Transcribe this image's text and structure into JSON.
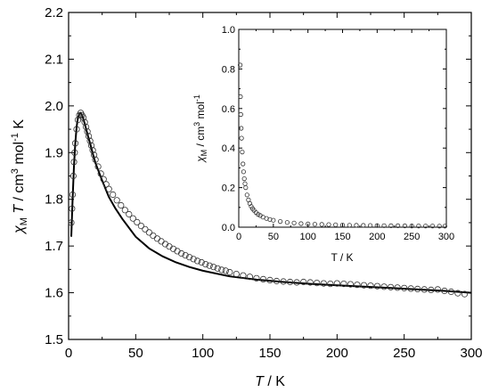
{
  "chart_data": [
    {
      "type": "scatter",
      "title": "",
      "xlabel": "T / K",
      "xlabel_parts": {
        "sym": "T",
        "rest": " / K"
      },
      "ylabel": "χM T / cm3 mol-1 K",
      "ylabel_parts": {
        "chi": "χ",
        "sub": "M",
        "t": " T",
        "a": " / cm",
        "sup1": "3",
        "b": " mol",
        "sup2": "-1",
        "c": " K"
      },
      "xlim": [
        0,
        300
      ],
      "ylim": [
        1.5,
        2.2
      ],
      "x_ticks": [
        0,
        50,
        100,
        150,
        200,
        250,
        300
      ],
      "y_ticks": [
        1.5,
        1.6,
        1.7,
        1.8,
        1.9,
        2.0,
        2.1,
        2.2
      ],
      "x_tick_labels": [
        "0",
        "50",
        "100",
        "150",
        "200",
        "250",
        "300"
      ],
      "y_tick_labels": [
        "1.5",
        "1.6",
        "1.7",
        "1.8",
        "1.9",
        "2.0",
        "2.1",
        "2.2"
      ],
      "grid": false,
      "series": [
        {
          "kind": "points",
          "marker": "open-circle",
          "x": [
            2,
            2.5,
            3,
            3.5,
            4,
            4.5,
            5,
            6,
            7,
            8,
            9,
            10,
            11,
            12,
            13,
            14,
            15,
            16,
            17,
            18,
            19,
            20,
            22,
            24,
            26,
            28,
            30,
            33,
            36,
            39,
            42,
            45,
            48,
            51,
            54,
            57,
            60,
            63,
            66,
            69,
            72,
            75,
            78,
            81,
            84,
            87,
            90,
            93,
            96,
            99,
            102,
            105,
            108,
            111,
            114,
            117,
            120,
            125,
            130,
            135,
            140,
            145,
            150,
            155,
            160,
            165,
            170,
            175,
            180,
            185,
            190,
            195,
            200,
            205,
            210,
            215,
            220,
            225,
            230,
            235,
            240,
            245,
            250,
            255,
            260,
            265,
            270,
            275,
            280,
            285,
            290,
            295
          ],
          "y": [
            1.75,
            1.78,
            1.81,
            1.85,
            1.88,
            1.9,
            1.92,
            1.95,
            1.97,
            1.98,
            1.985,
            1.98,
            1.975,
            1.965,
            1.955,
            1.945,
            1.935,
            1.925,
            1.915,
            1.905,
            1.895,
            1.885,
            1.87,
            1.855,
            1.843,
            1.832,
            1.822,
            1.81,
            1.798,
            1.787,
            1.777,
            1.768,
            1.759,
            1.751,
            1.743,
            1.736,
            1.729,
            1.722,
            1.716,
            1.71,
            1.704,
            1.699,
            1.694,
            1.689,
            1.684,
            1.68,
            1.676,
            1.672,
            1.668,
            1.665,
            1.661,
            1.658,
            1.655,
            1.652,
            1.649,
            1.647,
            1.644,
            1.64,
            1.637,
            1.634,
            1.631,
            1.629,
            1.627,
            1.625,
            1.624,
            1.623,
            1.622,
            1.623,
            1.622,
            1.621,
            1.62,
            1.619,
            1.62,
            1.619,
            1.618,
            1.617,
            1.616,
            1.615,
            1.614,
            1.613,
            1.612,
            1.611,
            1.61,
            1.609,
            1.608,
            1.607,
            1.606,
            1.607,
            1.604,
            1.602,
            1.599,
            1.597
          ]
        },
        {
          "kind": "fit-line",
          "x": [
            2,
            3,
            4,
            5,
            6,
            7,
            8,
            9,
            10,
            11,
            12,
            14,
            16,
            18,
            20,
            25,
            30,
            35,
            40,
            50,
            60,
            70,
            80,
            90,
            100,
            120,
            140,
            160,
            180,
            200,
            220,
            240,
            260,
            280,
            300
          ],
          "y": [
            1.72,
            1.8,
            1.87,
            1.92,
            1.955,
            1.975,
            1.983,
            1.985,
            1.98,
            1.972,
            1.962,
            1.94,
            1.92,
            1.898,
            1.878,
            1.84,
            1.805,
            1.78,
            1.758,
            1.72,
            1.695,
            1.678,
            1.665,
            1.655,
            1.647,
            1.635,
            1.628,
            1.623,
            1.619,
            1.616,
            1.613,
            1.61,
            1.607,
            1.604,
            1.6
          ]
        }
      ]
    },
    {
      "type": "scatter",
      "title": "",
      "inset": true,
      "xlabel": "T / K",
      "ylabel": "χM / cm3 mol-1",
      "ylabel_parts": {
        "chi": "χ",
        "sub": "M",
        "a": " / cm",
        "sup1": "3",
        "b": " mol",
        "sup2": "-1"
      },
      "xlim": [
        0,
        300
      ],
      "ylim": [
        0,
        1.0
      ],
      "x_ticks": [
        0,
        50,
        100,
        150,
        200,
        250,
        300
      ],
      "y_ticks": [
        0.0,
        0.2,
        0.4,
        0.6,
        0.8,
        1.0
      ],
      "x_tick_labels": [
        "0",
        "50",
        "100",
        "150",
        "200",
        "250",
        "300"
      ],
      "y_tick_labels": [
        "0.0",
        "0.2",
        "0.4",
        "0.6",
        "0.8",
        "1.0"
      ],
      "grid": false,
      "series": [
        {
          "kind": "points",
          "marker": "open-circle",
          "x": [
            2,
            2.5,
            3,
            3.5,
            4,
            5,
            6,
            7,
            8,
            9,
            10,
            12,
            14,
            16,
            18,
            20,
            22,
            25,
            28,
            31,
            35,
            40,
            45,
            50,
            60,
            70,
            80,
            90,
            100,
            110,
            120,
            130,
            140,
            150,
            160,
            170,
            180,
            190,
            200,
            210,
            220,
            230,
            240,
            250,
            260,
            270,
            280,
            290,
            298
          ],
          "y": [
            0.82,
            0.66,
            0.57,
            0.5,
            0.45,
            0.38,
            0.32,
            0.28,
            0.245,
            0.22,
            0.2,
            0.163,
            0.138,
            0.12,
            0.105,
            0.094,
            0.085,
            0.074,
            0.065,
            0.059,
            0.051,
            0.044,
            0.039,
            0.035,
            0.029,
            0.024,
            0.021,
            0.018,
            0.016,
            0.015,
            0.014,
            0.013,
            0.012,
            0.011,
            0.01,
            0.0095,
            0.009,
            0.0085,
            0.008,
            0.0077,
            0.0074,
            0.007,
            0.0067,
            0.0064,
            0.0062,
            0.006,
            0.0058,
            0.0056,
            0.0054
          ]
        }
      ]
    }
  ]
}
